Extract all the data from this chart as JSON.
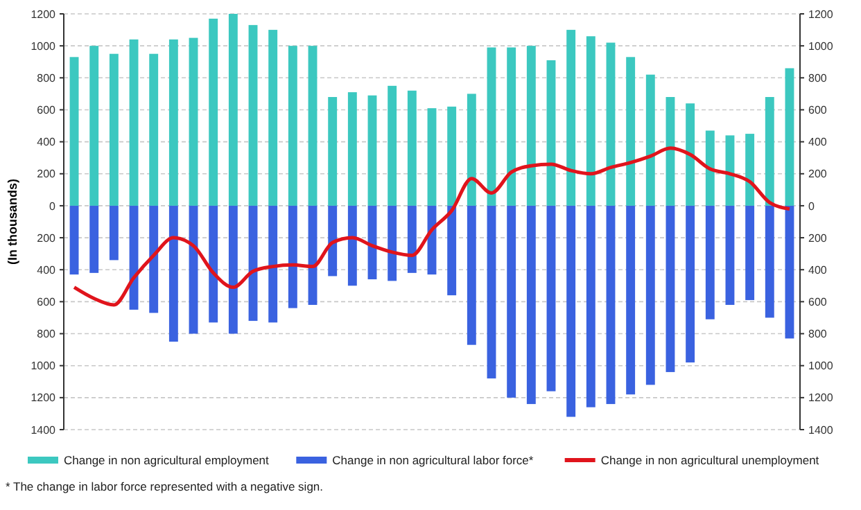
{
  "chart_data": {
    "type": "bar",
    "stacked": true,
    "ylabel": "(In thousands)",
    "categories": [
      null,
      null,
      null,
      null,
      null,
      null,
      null,
      null,
      null,
      null,
      null,
      null,
      null,
      null,
      null,
      null,
      null,
      null,
      null,
      null,
      null,
      null,
      null,
      null,
      null,
      null,
      null,
      null,
      null,
      null,
      null,
      null,
      null,
      null,
      null,
      null,
      null
    ],
    "series": [
      {
        "name": "Change in non agricultural employment",
        "color": "#3cc8c0",
        "values": [
          930,
          1000,
          950,
          1040,
          950,
          1040,
          1050,
          1170,
          1200,
          1130,
          1100,
          1000,
          1000,
          680,
          710,
          690,
          750,
          720,
          610,
          620,
          700,
          990,
          990,
          1000,
          910,
          1100,
          1060,
          1020,
          930,
          820,
          680,
          640,
          470,
          440,
          450,
          680,
          860
        ]
      },
      {
        "name": "Change in non agricultural labor force*",
        "color": "#3a62e0",
        "values": [
          -430,
          -420,
          -340,
          -650,
          -670,
          -850,
          -800,
          -730,
          -800,
          -720,
          -730,
          -640,
          -620,
          -440,
          -500,
          -460,
          -470,
          -420,
          -430,
          -560,
          -870,
          -1080,
          -1200,
          -1240,
          -1160,
          -1320,
          -1260,
          -1240,
          -1180,
          -1120,
          -1040,
          -980,
          -710,
          -620,
          -590,
          -700,
          -830
        ]
      },
      {
        "name": "Change in non agricultural unemployment",
        "type": "line",
        "color": "#e0141c",
        "values": [
          -510,
          -580,
          -620,
          -450,
          -310,
          -200,
          -250,
          -420,
          -510,
          -410,
          -380,
          -370,
          -380,
          -230,
          -200,
          -250,
          -290,
          -310,
          -150,
          -30,
          170,
          80,
          210,
          250,
          260,
          220,
          200,
          240,
          270,
          310,
          360,
          320,
          230,
          200,
          150,
          20,
          -20
        ]
      }
    ],
    "ylim": [
      -1400,
      1200
    ],
    "yticks": [
      {
        "value": -1400,
        "label": "1400"
      },
      {
        "value": -1200,
        "label": "1200"
      },
      {
        "value": -1000,
        "label": "1000"
      },
      {
        "value": -800,
        "label": "800"
      },
      {
        "value": -600,
        "label": "600"
      },
      {
        "value": -400,
        "label": "400"
      },
      {
        "value": -200,
        "label": "200"
      },
      0,
      200,
      400,
      600,
      800,
      1000,
      1200
    ],
    "y2lim": [
      -1400,
      1200
    ],
    "y2ticks": [
      {
        "value": -1400,
        "label": "1400"
      },
      {
        "value": -1200,
        "label": "1200"
      },
      {
        "value": -1000,
        "label": "1000"
      },
      {
        "value": -800,
        "label": "800"
      },
      {
        "value": -600,
        "label": "600"
      },
      {
        "value": -400,
        "label": "400"
      },
      {
        "value": -200,
        "label": "200"
      },
      0,
      200,
      400,
      600,
      800,
      1000,
      1200
    ],
    "grid": "y",
    "legend": "bottom",
    "line_style": "solid",
    "marker": "none",
    "annotations": [
      "* The change in labor force represented with a negative sign."
    ]
  }
}
